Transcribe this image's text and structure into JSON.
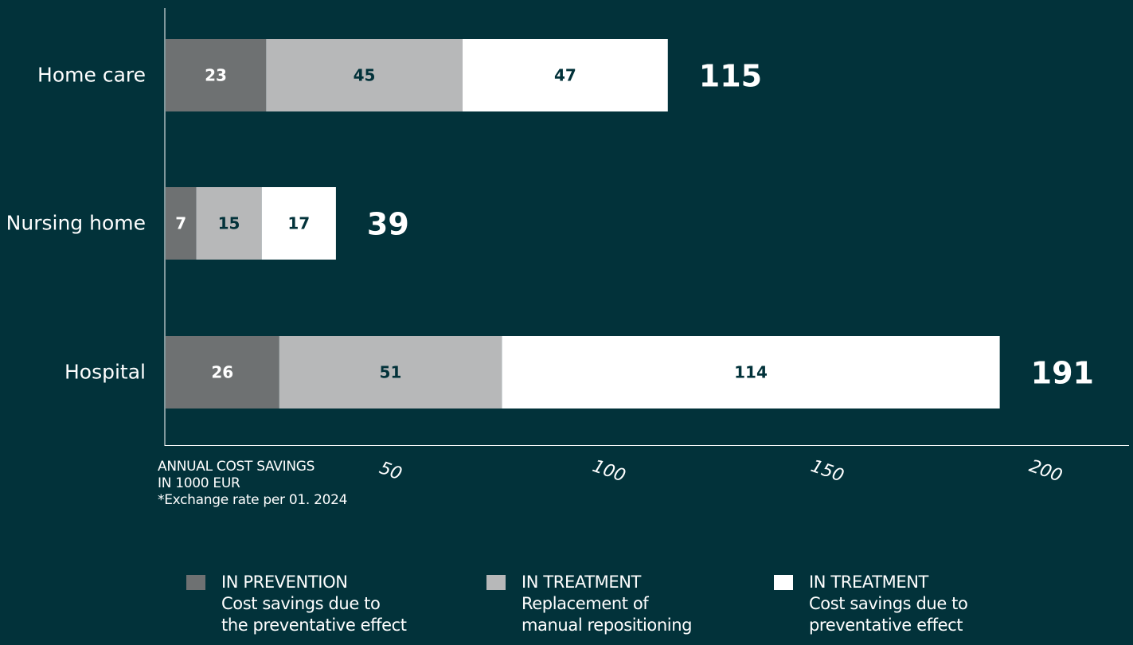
{
  "chart_data": {
    "type": "bar",
    "orientation": "horizontal",
    "stacked": true,
    "categories": [
      "Home care",
      "Nursing home",
      "Hospital"
    ],
    "series": [
      {
        "values": [
          23,
          7,
          26
        ],
        "color": "#6e7172"
      },
      {
        "values": [
          45,
          15,
          51
        ],
        "color": "#b7b8b9"
      },
      {
        "values": [
          47,
          17,
          114
        ],
        "color": "#ffffff"
      }
    ],
    "totals": [
      115,
      39,
      191
    ],
    "xticks": [
      50,
      100,
      150,
      200
    ],
    "xlim": [
      0,
      221
    ],
    "grid": false,
    "legend_position": "bottom",
    "xlabel_lines": [
      "ANNUAL COST SAVINGS",
      "IN 1000 EUR",
      "*Exchange rate per 01. 2024"
    ]
  },
  "legend": [
    {
      "title": "IN PREVENTION",
      "lines": [
        "Cost savings due to",
        "the preventative effect"
      ],
      "color": "#6e7172"
    },
    {
      "title": "IN TREATMENT",
      "lines": [
        "Replacement of",
        "manual repositioning"
      ],
      "color": "#b7b8b9"
    },
    {
      "title": "IN TREATMENT",
      "lines": [
        "Cost savings due to",
        "preventative effect"
      ],
      "color": "#ffffff"
    }
  ],
  "colors": {
    "background": "#02323a",
    "dark_label": "#ffffff",
    "light_label": "#02323a"
  }
}
